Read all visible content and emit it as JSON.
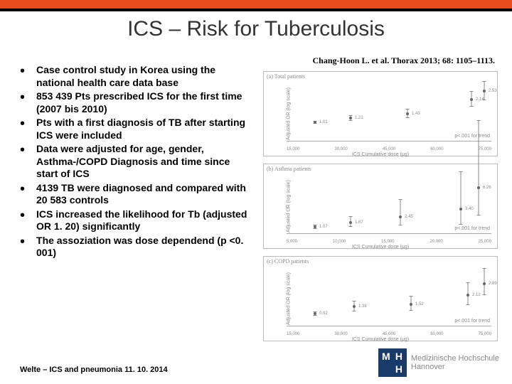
{
  "title": "ICS – Risk for Tuberculosis",
  "citation": "Chang-Hoon L. et al. Thorax 2013; 68: 1105–1113.",
  "bullets": [
    "Case control study in Korea using the national health care data base",
    "853 439 Pts prescribed ICS for the first time (2007 bis 2010)",
    "Pts with a first diagnosis of TB after starting ICS were included",
    "Data were adjusted for age, gender,  Asthma-/COPD Diagnosis and time since start of ICS",
    "4139 TB were diagnosed and compared with 20 583 controls",
    "ICS increased the likelihood for Tb (adjusted OR 1. 20) significantly",
    "The assoziation was dose dependend (p <0. 001)"
  ],
  "footer": "Welte – ICS and pneumonia 11. 10. 2014",
  "logo": {
    "line1": "Medizinische Hochschule",
    "line2": "Hannover"
  },
  "charts": {
    "xlabel": "ICS Cumulative dose (μg)",
    "ylabel": "Adjusted OR (log scale)",
    "ptrend": "p<.001 for trend",
    "panels": [
      {
        "id": "a",
        "label": "(a) Total patients",
        "ymax": 3.0,
        "xticks": [
          "15,000",
          "30,000",
          "45,000",
          "60,000",
          "75,000"
        ],
        "points": [
          {
            "x": 40,
            "y": 1.01,
            "lo": 0.94,
            "hi": 1.09
          },
          {
            "x": 90,
            "y": 1.21,
            "lo": 1.08,
            "hi": 1.35
          },
          {
            "x": 170,
            "y": 1.43,
            "lo": 1.23,
            "hi": 1.66
          },
          {
            "x": 260,
            "y": 2.14,
            "lo": 1.79,
            "hi": 2.55
          },
          {
            "x": 278,
            "y": 2.53,
            "lo": 2.09,
            "hi": 3.05
          }
        ]
      },
      {
        "id": "b",
        "label": "(b) Asthma patients",
        "ymax": 8.0,
        "xticks": [
          "5,000",
          "10,000",
          "15,000",
          "20,000",
          "25,000"
        ],
        "points": [
          {
            "x": 40,
            "y": 1.07,
            "lo": 0.82,
            "hi": 1.39
          },
          {
            "x": 90,
            "y": 1.67,
            "lo": 1.1,
            "hi": 2.53
          },
          {
            "x": 160,
            "y": 2.45,
            "lo": 1.28,
            "hi": 4.7
          },
          {
            "x": 245,
            "y": 3.4,
            "lo": 1.38,
            "hi": 8.35
          },
          {
            "x": 270,
            "y": 6.26,
            "lo": 2.6,
            "hi": 15.05
          }
        ]
      },
      {
        "id": "c",
        "label": "(c) COPD patients",
        "ymax": 4.0,
        "xticks": [
          "15,000",
          "30,000",
          "45,000",
          "60,000",
          "75,000"
        ],
        "points": [
          {
            "x": 40,
            "y": 0.92,
            "lo": 0.79,
            "hi": 1.07
          },
          {
            "x": 95,
            "y": 1.38,
            "lo": 1.09,
            "hi": 1.75
          },
          {
            "x": 175,
            "y": 1.52,
            "lo": 1.11,
            "hi": 2.07
          },
          {
            "x": 255,
            "y": 2.12,
            "lo": 1.5,
            "hi": 2.99
          },
          {
            "x": 278,
            "y": 2.89,
            "lo": 2.14,
            "hi": 3.9
          }
        ]
      }
    ]
  }
}
